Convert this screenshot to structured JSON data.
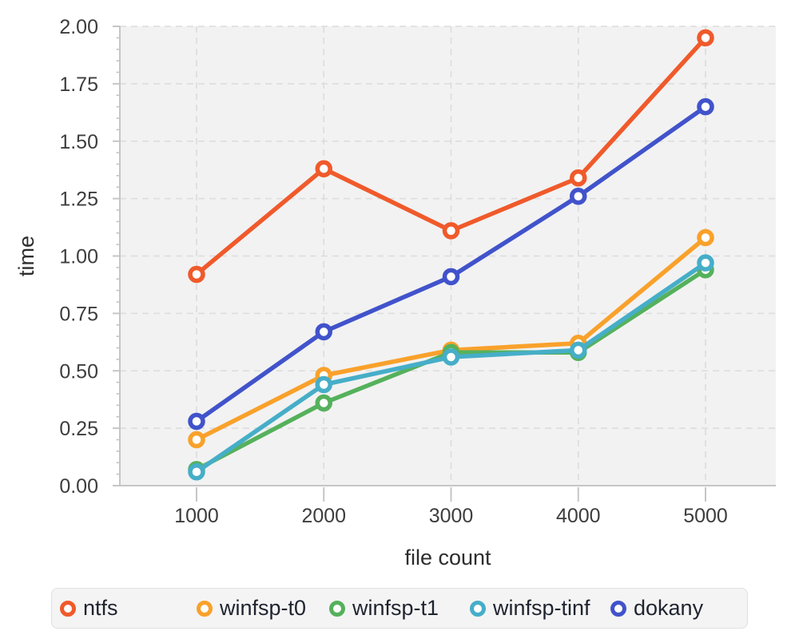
{
  "chart_data": {
    "type": "line",
    "title": "",
    "xlabel": "file count",
    "ylabel": "time",
    "x": [
      1000,
      2000,
      3000,
      4000,
      5000
    ],
    "xticks": [
      "1000",
      "2000",
      "3000",
      "4000",
      "5000"
    ],
    "yticks": [
      "0.00",
      "0.25",
      "0.50",
      "0.75",
      "1.00",
      "1.25",
      "1.50",
      "1.75",
      "2.00"
    ],
    "ylim": [
      0,
      2.0
    ],
    "y_minor_step": 0.05,
    "grid": true,
    "grid_style": "dashed",
    "marker": "open-circle",
    "legend_position": "bottom",
    "panel_background": "#f2f2f2",
    "grid_color": "#dcdcdc",
    "axis_color": "#c6c6c6",
    "tick_label_color": "#3d3d3d",
    "axis_title_color": "#2d2d2d",
    "series": [
      {
        "name": "ntfs",
        "color": "#f05a2b",
        "values": [
          0.92,
          1.38,
          1.11,
          1.34,
          1.95
        ]
      },
      {
        "name": "winfsp-t0",
        "color": "#f9a12b",
        "values": [
          0.2,
          0.48,
          0.59,
          0.62,
          1.08
        ]
      },
      {
        "name": "winfsp-t1",
        "color": "#55b15c",
        "values": [
          0.07,
          0.36,
          0.58,
          0.58,
          0.94
        ]
      },
      {
        "name": "winfsp-tinf",
        "color": "#46aec8",
        "values": [
          0.06,
          0.44,
          0.56,
          0.59,
          0.97
        ]
      },
      {
        "name": "dokany",
        "color": "#4153cb",
        "values": [
          0.28,
          0.67,
          0.91,
          1.26,
          1.65
        ]
      }
    ]
  }
}
